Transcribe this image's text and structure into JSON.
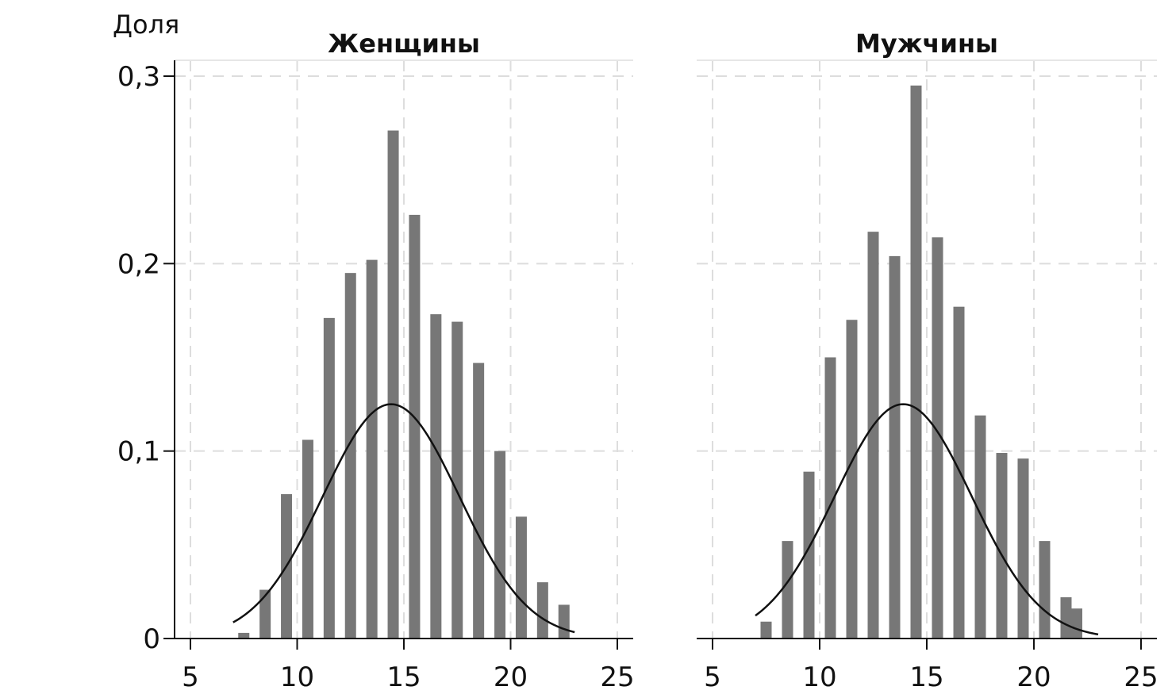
{
  "chart_data": [
    {
      "type": "bar",
      "title": "Женщины",
      "ylabel": "Доля",
      "xlabel": "",
      "xlim": [
        4.2,
        25.8
      ],
      "ylim": [
        0,
        0.305
      ],
      "xticks": [
        5,
        10,
        15,
        20,
        25
      ],
      "xtick_labels": [
        "5",
        "10",
        "15",
        "20",
        "25"
      ],
      "yticks": [
        0,
        0.1,
        0.2,
        0.3
      ],
      "ytick_labels": [
        "0",
        "0,1",
        "0,2",
        "0,3"
      ],
      "grid": true,
      "bar_color": "#777777",
      "curve_color": "#111111",
      "bars": {
        "x": [
          7.5,
          8.5,
          9.5,
          10.5,
          11.5,
          12.5,
          13.5,
          14.5,
          15.5,
          16.5,
          17.5,
          18.5,
          19.5,
          20.5,
          21.5,
          22.5
        ],
        "values": [
          0.003,
          0.026,
          0.077,
          0.106,
          0.171,
          0.195,
          0.202,
          0.271,
          0.226,
          0.173,
          0.169,
          0.147,
          0.1,
          0.065,
          0.03,
          0.018
        ]
      },
      "normal_curve": {
        "mean": 14.4,
        "peak": 0.125,
        "sd": 3.2,
        "x_range": [
          7,
          23
        ]
      }
    },
    {
      "type": "bar",
      "title": "Мужчины",
      "ylabel": "",
      "xlabel": "",
      "xlim": [
        4.2,
        25.8
      ],
      "ylim": [
        0,
        0.305
      ],
      "xticks": [
        5,
        10,
        15,
        20,
        25
      ],
      "xtick_labels": [
        "5",
        "10",
        "15",
        "20",
        "25"
      ],
      "yticks": [
        0,
        0.1,
        0.2,
        0.3
      ],
      "grid": true,
      "bar_color": "#777777",
      "curve_color": "#111111",
      "bars": {
        "x": [
          7.5,
          8.5,
          9.5,
          10.5,
          11.5,
          12.5,
          13.5,
          14.5,
          15.5,
          16.5,
          17.5,
          18.5,
          19.5,
          20.5,
          21.5,
          22.0
        ],
        "values": [
          0.009,
          0.052,
          0.089,
          0.15,
          0.17,
          0.217,
          0.204,
          0.295,
          0.214,
          0.177,
          0.119,
          0.099,
          0.096,
          0.052,
          0.022,
          0.016
        ]
      },
      "normal_curve": {
        "mean": 13.9,
        "peak": 0.125,
        "sd": 3.2,
        "x_range": [
          7,
          23
        ]
      }
    }
  ]
}
